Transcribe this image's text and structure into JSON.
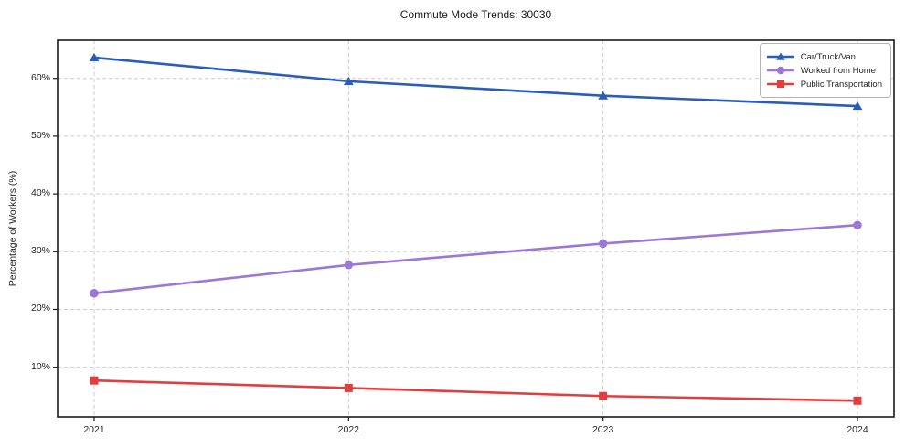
{
  "chart_data": {
    "type": "line",
    "title": "Commute Mode Trends: 30030",
    "xlabel": "",
    "ylabel": "Percentage of Workers (%)",
    "categories": [
      "2021",
      "2022",
      "2023",
      "2024"
    ],
    "series": [
      {
        "name": "Car/Truck/Van",
        "color": "#2a5db8",
        "marker": "triangle",
        "values": [
          63.6,
          59.5,
          57.0,
          55.2
        ]
      },
      {
        "name": "Worked from Home",
        "color": "#9c77d6",
        "marker": "circle",
        "values": [
          22.8,
          27.7,
          31.4,
          34.6
        ]
      },
      {
        "name": "Public Transportation",
        "color": "#e03f3f",
        "marker": "square",
        "values": [
          7.7,
          6.4,
          5.0,
          4.2
        ]
      }
    ],
    "yticks": [
      10,
      20,
      30,
      40,
      50,
      60
    ],
    "ytick_suffix": "%",
    "ylim": [
      1.4,
      66.6
    ],
    "grid": true,
    "grid_style": "dashed",
    "legend_position": "upper right"
  },
  "colors": {
    "background": "#ffffff",
    "grid": "#cccccc",
    "spine": "#1a1a1a",
    "text": "#262626",
    "legend_border": "#b3b3b3"
  }
}
